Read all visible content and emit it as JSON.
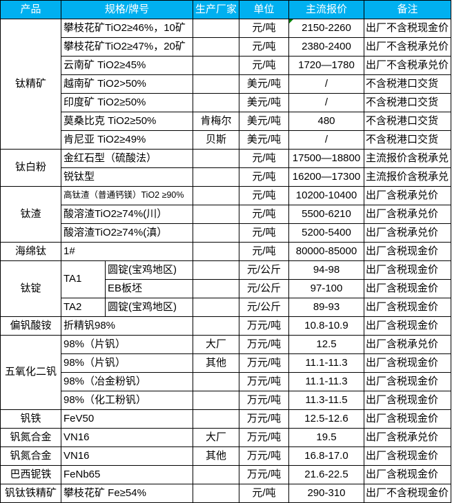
{
  "colors": {
    "header_bg": "#00B0F0",
    "header_text": "#FFFFFF",
    "border": "#000000",
    "cell_flag": "#008000"
  },
  "table": {
    "columns": [
      "产品",
      "规格/牌号",
      "生产厂家",
      "单位",
      "主流报价",
      "备注"
    ],
    "rows": [
      {
        "product": {
          "label": "钛精矿",
          "rowspan": 7
        },
        "spec": [
          {
            "label": "攀枝花矿TiO2≥46%，10矿",
            "colspan": 2
          }
        ],
        "factory": "",
        "unit": "元/吨",
        "price": "2150-2260",
        "note": "出厂不含税现金价",
        "flag": true
      },
      {
        "spec": [
          {
            "label": "攀枝花矿TiO2≥47%，20矿",
            "colspan": 2
          }
        ],
        "factory": "",
        "unit": "元/吨",
        "price": "2380-2400",
        "note": "出厂不含税承兑价"
      },
      {
        "spec": [
          {
            "label": "云南矿 TiO2≥45%",
            "colspan": 2
          }
        ],
        "factory": "",
        "unit": "元/吨",
        "price": "1720—1780",
        "note": "出厂不含税承兑价"
      },
      {
        "spec": [
          {
            "label": "越南矿 TiO2>50%",
            "colspan": 2
          }
        ],
        "factory": "",
        "unit": "美元/吨",
        "price": "/",
        "note": "不含税港口交货"
      },
      {
        "spec": [
          {
            "label": "印度矿 TiO2≥50%",
            "colspan": 2
          }
        ],
        "factory": "",
        "unit": "美元/吨",
        "price": "/",
        "note": "不含税港口交货"
      },
      {
        "spec": [
          {
            "label": "莫桑比克 TiO2≥50%",
            "colspan": 2
          }
        ],
        "factory": "肯梅尔",
        "unit": "美元/吨",
        "price": "480",
        "note": "不含税港口交货"
      },
      {
        "spec": [
          {
            "label": "肯尼亚 TiO2≥49%",
            "colspan": 2
          }
        ],
        "factory": "贝斯",
        "unit": "美元/吨",
        "price": "/",
        "note": "不含税港口交货"
      },
      {
        "product": {
          "label": "钛白粉",
          "rowspan": 2
        },
        "spec": [
          {
            "label": "金红石型（硫酸法）",
            "colspan": 2
          }
        ],
        "factory": "",
        "unit": "元/吨",
        "price": "17500—18800",
        "note": "主流报价含税承兑"
      },
      {
        "spec": [
          {
            "label": "锐钛型",
            "colspan": 2
          }
        ],
        "factory": "",
        "unit": "元/吨",
        "price": "16200—17300",
        "note": "主流报价含税承兑"
      },
      {
        "product": {
          "label": "钛渣",
          "rowspan": 3
        },
        "spec": [
          {
            "label": "高钛渣（普通钙镁）TiO2 ≥90%",
            "colspan": 2,
            "small": true
          }
        ],
        "factory": "",
        "unit": "元/吨",
        "price": "10200-10400",
        "note": "出厂含税承兑价"
      },
      {
        "spec": [
          {
            "label": "酸溶渣TiO2≥74%(川）",
            "colspan": 2
          }
        ],
        "factory": "",
        "unit": "元/吨",
        "price": "5500-6210",
        "note": "出厂含税承兑价"
      },
      {
        "spec": [
          {
            "label": "酸溶渣TiO2≥74%(滇）",
            "colspan": 2
          }
        ],
        "factory": "",
        "unit": "元/吨",
        "price": "5200-5400",
        "note": "出厂含税承兑价"
      },
      {
        "product": {
          "label": "海绵钛",
          "rowspan": 1
        },
        "spec": [
          {
            "label": "1#",
            "colspan": 2
          }
        ],
        "factory": "",
        "unit": "元/吨",
        "price": "80000-85000",
        "note": "出厂含税现金价"
      },
      {
        "product": {
          "label": "钛锭",
          "rowspan": 3
        },
        "spec": [
          {
            "label": "TA1",
            "rowspan": 2
          },
          {
            "label": "圆锭(宝鸡地区)"
          }
        ],
        "factory": "",
        "unit": "元/公斤",
        "price": "94-98",
        "note": "出厂含税现金价"
      },
      {
        "spec": [
          {
            "label": "EB板坯"
          }
        ],
        "factory": "",
        "unit": "元/公斤",
        "price": "97-100",
        "note": "出厂含税现金价"
      },
      {
        "spec": [
          {
            "label": "TA2"
          },
          {
            "label": "圆锭(宝鸡地区)"
          }
        ],
        "factory": "",
        "unit": "元/公斤",
        "price": "89-93",
        "note": "出厂含税现金价"
      },
      {
        "product": {
          "label": "偏钒酸铵",
          "rowspan": 1
        },
        "spec": [
          {
            "label": "折精钒98%",
            "colspan": 2
          }
        ],
        "factory": "",
        "unit": "万元/吨",
        "price": "10.8-10.9",
        "note": "出厂含税现金价"
      },
      {
        "product": {
          "label": "五氧化二钒",
          "rowspan": 4
        },
        "spec": [
          {
            "label": "98%（片钒）",
            "colspan": 2
          }
        ],
        "factory": "大厂",
        "unit": "万元/吨",
        "price": "12.5",
        "note": "出厂含税承兑价"
      },
      {
        "spec": [
          {
            "label": "98%（片钒）",
            "colspan": 2
          }
        ],
        "factory": "其他",
        "unit": "万元/吨",
        "price": "11.1-11.3",
        "note": "出厂含税现金价"
      },
      {
        "spec": [
          {
            "label": "98%（冶金粉钒）",
            "colspan": 2
          }
        ],
        "factory": "",
        "unit": "万元/吨",
        "price": "11.1-11.3",
        "note": "出厂含税现金价"
      },
      {
        "spec": [
          {
            "label": "98%（化工粉钒）",
            "colspan": 2
          }
        ],
        "factory": "",
        "unit": "万元/吨",
        "price": "11.3-11.5",
        "note": "出厂含税现金价"
      },
      {
        "product": {
          "label": "钒铁",
          "rowspan": 1
        },
        "spec": [
          {
            "label": "FeV50",
            "colspan": 2
          }
        ],
        "factory": "",
        "unit": "万元/吨",
        "price": "12.5-12.6",
        "note": "出厂含税现金价"
      },
      {
        "product": {
          "label": "钒氮合金",
          "rowspan": 1
        },
        "spec": [
          {
            "label": "VN16",
            "colspan": 2
          }
        ],
        "factory": "大厂",
        "unit": "万元/吨",
        "price": "19.5",
        "note": "出厂含税承兑价"
      },
      {
        "product": {
          "label": "钒氮合金",
          "rowspan": 1
        },
        "spec": [
          {
            "label": "VN16",
            "colspan": 2
          }
        ],
        "factory": "其他",
        "unit": "万元/吨",
        "price": "16.8-17.0",
        "note": "出厂含税现金价"
      },
      {
        "product": {
          "label": "巴西铌铁",
          "rowspan": 1
        },
        "spec": [
          {
            "label": "FeNb65",
            "colspan": 2
          }
        ],
        "factory": "",
        "unit": "万元/吨",
        "price": "21.6-22.5",
        "note": "出厂含税现金价"
      },
      {
        "product": {
          "label": "钒钛铁精矿",
          "rowspan": 1
        },
        "spec": [
          {
            "label": "攀枝花矿 Fe≥54%",
            "colspan": 2
          }
        ],
        "factory": "",
        "unit": "元/吨",
        "price": "290-310",
        "note": "出厂不含税现金价"
      }
    ]
  }
}
